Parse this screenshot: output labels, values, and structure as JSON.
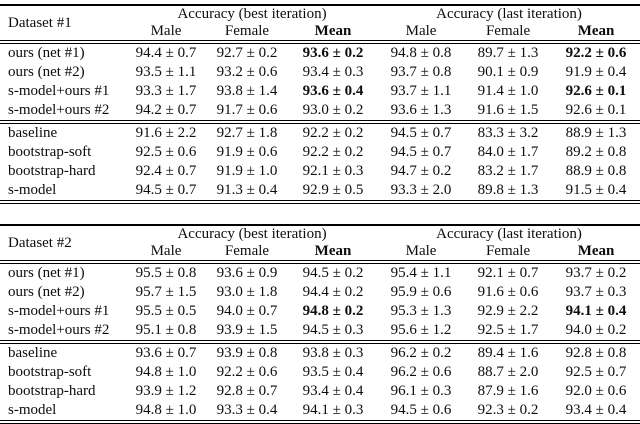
{
  "colors": {
    "background": "#ffffff",
    "text": "#0d0d0d",
    "rule": "#000000"
  },
  "tables": [
    {
      "dataset_label": "Dataset #1",
      "group_headers": [
        "Accuracy (best iteration)",
        "Accuracy (last iteration)"
      ],
      "sub_headers": [
        "Male",
        "Female",
        "Mean",
        "Male",
        "Female",
        "Mean"
      ],
      "rows": [
        {
          "label": "ours (net #1)",
          "cells": [
            "94.4 ± 0.7",
            "92.7 ± 0.2",
            "93.6 ± 0.2",
            "94.8 ± 0.8",
            "89.7 ± 1.3",
            "92.2 ± 0.6"
          ],
          "bold": [
            2,
            5
          ],
          "rule_below": false
        },
        {
          "label": "ours (net #2)",
          "cells": [
            "93.5 ± 1.1",
            "93.2 ± 0.6",
            "93.4 ± 0.3",
            "93.7 ± 0.8",
            "90.1 ± 0.9",
            "91.9 ± 0.4"
          ],
          "bold": [],
          "rule_below": false
        },
        {
          "label": "s-model+ours #1",
          "cells": [
            "93.3 ± 1.7",
            "93.8 ± 1.4",
            "93.6 ± 0.4",
            "93.7 ± 1.1",
            "91.4 ± 1.0",
            "92.6 ± 0.1"
          ],
          "bold": [
            2,
            5
          ],
          "rule_below": false
        },
        {
          "label": "s-model+ours #2",
          "cells": [
            "94.2 ± 0.7",
            "91.7 ± 0.6",
            "93.0 ± 0.2",
            "93.6 ± 1.3",
            "91.6 ± 1.5",
            "92.6 ± 0.1"
          ],
          "bold": [],
          "rule_below": true
        },
        {
          "label": "baseline",
          "cells": [
            "91.6 ± 2.2",
            "92.7 ± 1.8",
            "92.2 ± 0.2",
            "94.5 ± 0.7",
            "83.3 ± 3.2",
            "88.9 ± 1.3"
          ],
          "bold": [],
          "rule_below": false
        },
        {
          "label": "bootstrap-soft",
          "cells": [
            "92.5 ± 0.6",
            "91.9 ± 0.6",
            "92.2 ± 0.2",
            "94.5 ± 0.7",
            "84.0 ± 1.7",
            "89.2 ± 0.8"
          ],
          "bold": [],
          "rule_below": false
        },
        {
          "label": "bootstrap-hard",
          "cells": [
            "92.4 ± 0.7",
            "91.9 ± 1.0",
            "92.1 ± 0.3",
            "94.7 ± 0.2",
            "83.2 ± 1.7",
            "88.9 ± 0.8"
          ],
          "bold": [],
          "rule_below": false
        },
        {
          "label": "s-model",
          "cells": [
            "94.5 ± 0.7",
            "91.3 ± 0.4",
            "92.9 ± 0.5",
            "93.3 ± 2.0",
            "89.8 ± 1.3",
            "91.5 ± 0.4"
          ],
          "bold": [],
          "rule_below": false
        }
      ]
    },
    {
      "dataset_label": "Dataset #2",
      "group_headers": [
        "Accuracy (best iteration)",
        "Accuracy (last iteration)"
      ],
      "sub_headers": [
        "Male",
        "Female",
        "Mean",
        "Male",
        "Female",
        "Mean"
      ],
      "rows": [
        {
          "label": "ours (net #1)",
          "cells": [
            "95.5 ± 0.8",
            "93.6 ± 0.9",
            "94.5 ± 0.2",
            "95.4 ± 1.1",
            "92.1 ± 0.7",
            "93.7 ± 0.2"
          ],
          "bold": [],
          "rule_below": false
        },
        {
          "label": "ours (net #2)",
          "cells": [
            "95.7 ± 1.5",
            "93.0 ± 1.8",
            "94.4 ± 0.2",
            "95.9 ± 0.6",
            "91.6 ± 0.6",
            "93.7 ± 0.3"
          ],
          "bold": [],
          "rule_below": false
        },
        {
          "label": "s-model+ours #1",
          "cells": [
            "95.5 ± 0.5",
            "94.0 ± 0.7",
            "94.8 ± 0.2",
            "95.3 ± 1.3",
            "92.9 ± 2.2",
            "94.1 ± 0.4"
          ],
          "bold": [
            2,
            5
          ],
          "rule_below": false
        },
        {
          "label": "s-model+ours #2",
          "cells": [
            "95.1 ± 0.8",
            "93.9 ± 1.5",
            "94.5 ± 0.3",
            "95.6 ± 1.2",
            "92.5 ± 1.7",
            "94.0 ± 0.2"
          ],
          "bold": [],
          "rule_below": true
        },
        {
          "label": "baseline",
          "cells": [
            "93.6 ± 0.7",
            "93.9 ± 0.8",
            "93.8 ± 0.3",
            "96.2 ± 0.2",
            "89.4 ± 1.6",
            "92.8 ± 0.8"
          ],
          "bold": [],
          "rule_below": false
        },
        {
          "label": "bootstrap-soft",
          "cells": [
            "94.8 ± 1.0",
            "92.2 ± 0.6",
            "93.5 ± 0.4",
            "96.2 ± 0.6",
            "88.7 ± 2.0",
            "92.5 ± 0.7"
          ],
          "bold": [],
          "rule_below": false
        },
        {
          "label": "bootstrap-hard",
          "cells": [
            "93.9 ± 1.2",
            "92.8 ± 0.7",
            "93.4 ± 0.4",
            "96.1 ± 0.3",
            "87.9 ± 1.6",
            "92.0 ± 0.6"
          ],
          "bold": [],
          "rule_below": false
        },
        {
          "label": "s-model",
          "cells": [
            "94.8 ± 1.0",
            "93.3 ± 0.4",
            "94.1 ± 0.3",
            "94.5 ± 0.6",
            "92.3 ± 0.2",
            "93.4 ± 0.4"
          ],
          "bold": [],
          "rule_below": false
        }
      ]
    }
  ]
}
